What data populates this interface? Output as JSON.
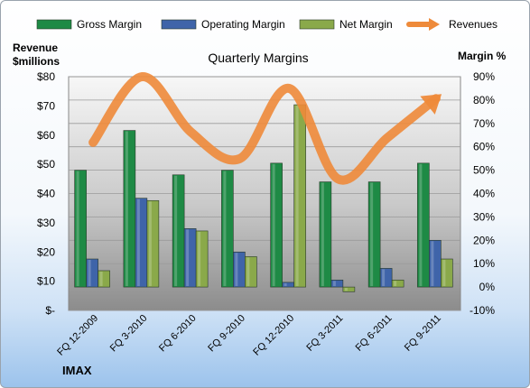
{
  "chart_data": {
    "type": "bar",
    "title": "Quarterly Margins",
    "left_axis_label_line1": "Revenue",
    "left_axis_label_line2": "$millions",
    "right_axis_label": "Margin %",
    "footer": "IMAX",
    "categories": [
      "FQ 12-2009",
      "FQ 3-2010",
      "FQ 6-2010",
      "FQ 9-2010",
      "FQ 12-2010",
      "FQ 3-2011",
      "FQ 6-2011",
      "FQ 9-2011"
    ],
    "series": [
      {
        "name": "Gross Margin",
        "axis": "right",
        "color": "#1e8a45",
        "values": [
          50,
          67,
          48,
          50,
          53,
          45,
          45,
          53
        ]
      },
      {
        "name": "Operating Margin",
        "axis": "right",
        "color": "#3f64a9",
        "values": [
          12,
          38,
          25,
          15,
          2,
          3,
          8,
          20
        ]
      },
      {
        "name": "Net Margin",
        "axis": "right",
        "color": "#8aa94a",
        "values": [
          7,
          37,
          24,
          13,
          78,
          -2,
          3,
          12
        ]
      },
      {
        "name": "Revenues",
        "axis": "left",
        "type": "line",
        "color": "#ee8a3a",
        "values": [
          57.5,
          80,
          61,
          52,
          76,
          45,
          59,
          72.5
        ]
      }
    ],
    "left_ticks": [
      "$-",
      "$10",
      "$20",
      "$30",
      "$40",
      "$50",
      "$60",
      "$70",
      "$80"
    ],
    "left_ylim": [
      0,
      80
    ],
    "right_ticks": [
      "-10%",
      "0%",
      "10%",
      "20%",
      "30%",
      "40%",
      "50%",
      "60%",
      "70%",
      "80%",
      "90%"
    ],
    "right_ylim": [
      -10,
      90
    ],
    "legend_position": "top",
    "grid": true
  }
}
